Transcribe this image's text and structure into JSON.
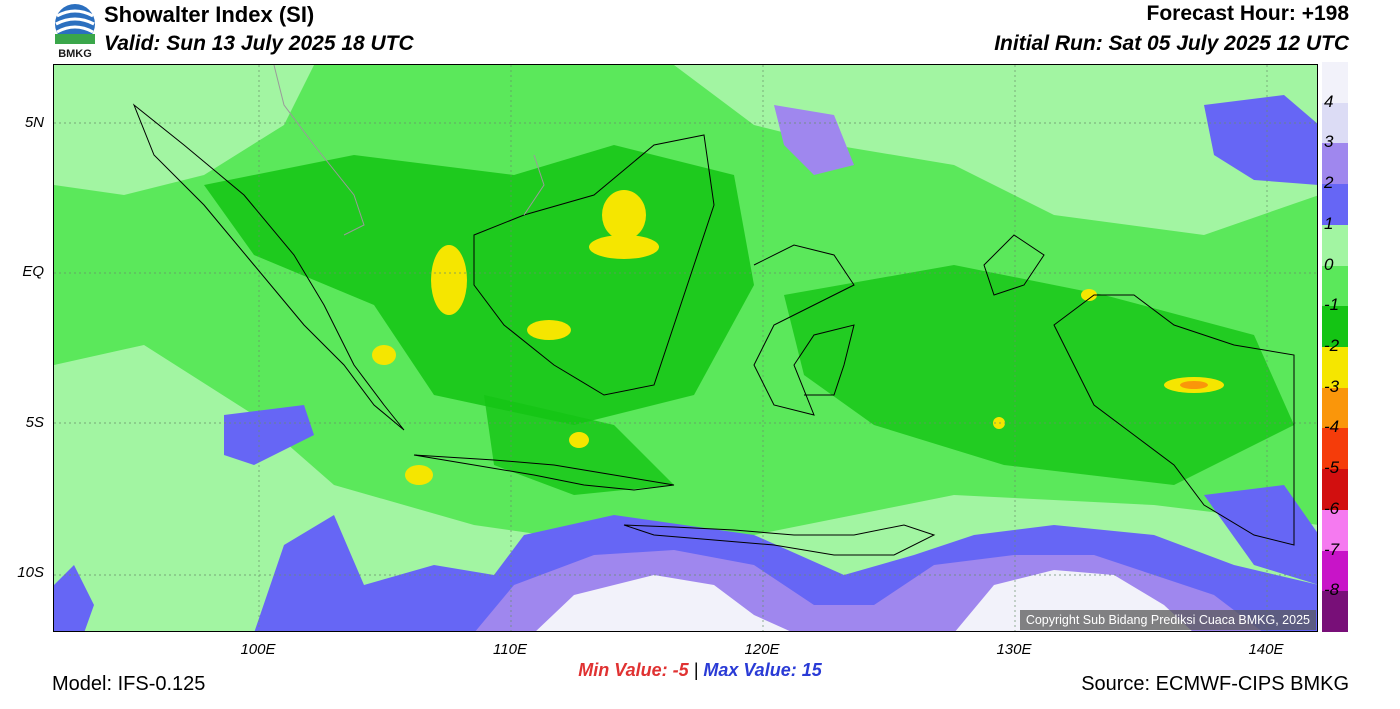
{
  "header": {
    "logo_text": "BMKG",
    "title": "Showalter Index (SI)",
    "valid": "Valid: Sun 13 July 2025 18 UTC",
    "forecast_hour": "Forecast Hour: +198",
    "initial_run": "Initial Run: Sat 05 July 2025 12 UTC"
  },
  "axes": {
    "latitudes": [
      "5N",
      "EQ",
      "5S",
      "10S"
    ],
    "longitudes": [
      "100E",
      "110E",
      "120E",
      "130E",
      "140E"
    ]
  },
  "colorbar": {
    "labels": [
      "4",
      "3",
      "2",
      "1",
      "0",
      "-1",
      "-2",
      "-3",
      "-4",
      "-5",
      "-6",
      "-7",
      "-8"
    ],
    "colors": [
      "#f2f2fa",
      "#dcdcf5",
      "#9f87ee",
      "#6666f5",
      "#a2f5a2",
      "#5be85b",
      "#14c414",
      "#f5e600",
      "#fa960a",
      "#f53c0a",
      "#d20f0f",
      "#f57af0",
      "#c814c8",
      "#780f78"
    ]
  },
  "copyright": "Copyright Sub Bidang Prediksi Cuaca BMKG, 2025",
  "summary": {
    "min_label": "Min Value:",
    "min_value": "-5",
    "separator": "|",
    "max_label": "Max Value:",
    "max_value": "15"
  },
  "footer": {
    "model": "Model: IFS-0.125",
    "source": "Source: ECMWF-CIPS BMKG"
  }
}
